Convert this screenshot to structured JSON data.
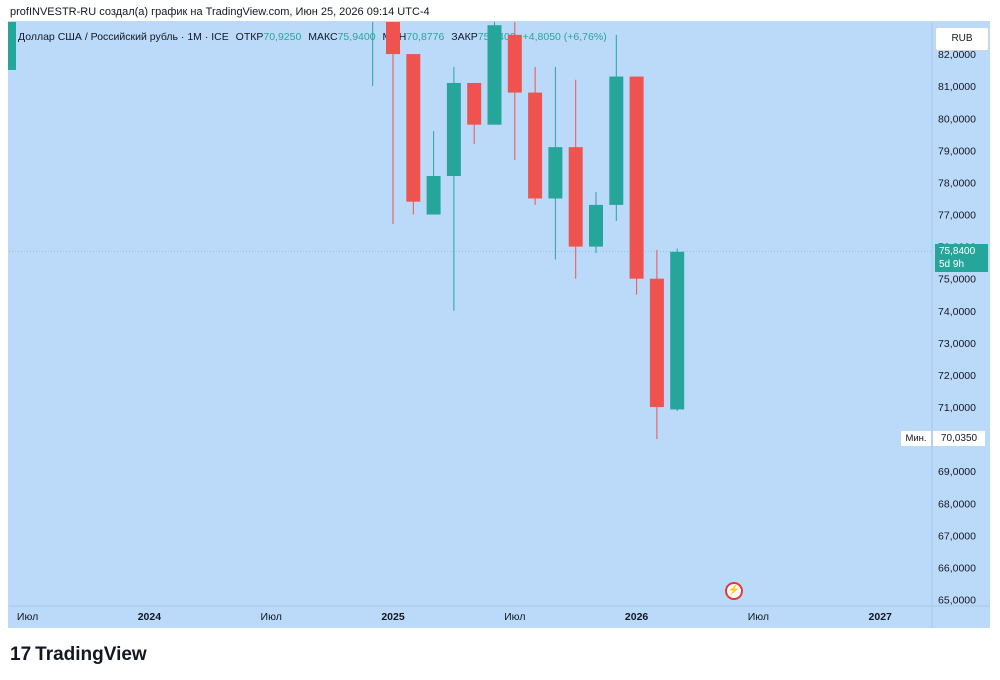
{
  "header": {
    "attribution": "profINVESTR-RU создал(а) график на TradingView.com, Июн 25, 2026 09:14 UTC-4"
  },
  "legend": {
    "symbol": "Доллар США / Российский рубль · 1M · ICE",
    "open_label": "ОТКР",
    "open": "70,9250",
    "high_label": "МАКС",
    "high": "75,9400",
    "low_label": "МИН",
    "low": "70,8776",
    "close_label": "ЗАКР",
    "close": "75,8400",
    "change": "+4,8050 (+6,76%)"
  },
  "currency": "RUB",
  "price_tag": {
    "value": "75,8400",
    "countdown": "5d 9h"
  },
  "min_marker": {
    "label": "Мин.",
    "value": "70,0350"
  },
  "brand": "TradingView",
  "colors": {
    "up": "#26a69a",
    "down": "#ef5350",
    "background": "#bbdaf9"
  },
  "chart_data": {
    "type": "candlestick",
    "ylim": [
      64.8,
      83.0
    ],
    "y_ticks": [
      65,
      66,
      67,
      68,
      69,
      70,
      71,
      72,
      73,
      74,
      75,
      76,
      77,
      78,
      79,
      80,
      81,
      82
    ],
    "y_tick_labels": [
      "65,0000",
      "66,0000",
      "67,0000",
      "68,0000",
      "69,0000",
      "70,0000",
      "71,0000",
      "72,0000",
      "73,0000",
      "74,0000",
      "75,0000",
      "76,0000",
      "77,0000",
      "78,0000",
      "79,0000",
      "80,0000",
      "81,0000",
      "82,0000"
    ],
    "x_labels": [
      "Июл",
      "2024",
      "Июл",
      "2025",
      "Июл",
      "2026",
      "Июл",
      "2027"
    ],
    "x_label_months": [
      "2023-07",
      "2024-01",
      "2024-07",
      "2025-01",
      "2025-07",
      "2026-01",
      "2026-07",
      "2027-01"
    ],
    "candles": [
      {
        "month": "2024-12",
        "open": 84.0,
        "high": 86.0,
        "low": 81.0,
        "close": 84.5
      },
      {
        "month": "2025-01",
        "open": 83.0,
        "high": 85.0,
        "low": 76.7,
        "close": 82.0
      },
      {
        "month": "2025-02",
        "open": 82.0,
        "high": 82.0,
        "low": 77.0,
        "close": 77.4
      },
      {
        "month": "2025-03",
        "open": 77.0,
        "high": 79.6,
        "low": 77.0,
        "close": 78.2
      },
      {
        "month": "2025-04",
        "open": 78.2,
        "high": 81.6,
        "low": 74.0,
        "close": 81.1
      },
      {
        "month": "2025-05",
        "open": 81.1,
        "high": 81.1,
        "low": 79.2,
        "close": 79.8
      },
      {
        "month": "2025-06",
        "open": 79.8,
        "high": 83.0,
        "low": 79.8,
        "close": 82.9
      },
      {
        "month": "2025-07",
        "open": 82.6,
        "high": 83.0,
        "low": 78.7,
        "close": 80.8
      },
      {
        "month": "2025-08",
        "open": 80.8,
        "high": 81.6,
        "low": 77.3,
        "close": 77.5
      },
      {
        "month": "2025-09",
        "open": 77.5,
        "high": 81.6,
        "low": 75.6,
        "close": 79.1
      },
      {
        "month": "2025-10",
        "open": 79.1,
        "high": 81.2,
        "low": 75.0,
        "close": 76.0
      },
      {
        "month": "2025-11",
        "open": 76.0,
        "high": 77.7,
        "low": 75.8,
        "close": 77.3
      },
      {
        "month": "2025-12",
        "open": 77.3,
        "high": 82.6,
        "low": 76.8,
        "close": 81.3
      },
      {
        "month": "2026-01",
        "open": 81.3,
        "high": 81.3,
        "low": 74.5,
        "close": 75.0
      },
      {
        "month": "2026-02",
        "open": 75.0,
        "high": 75.9,
        "low": 70.0,
        "close": 71.0
      },
      {
        "month": "2026-03",
        "open": 70.925,
        "high": 75.94,
        "low": 70.8776,
        "close": 75.84
      }
    ],
    "last_price": 75.84
  }
}
